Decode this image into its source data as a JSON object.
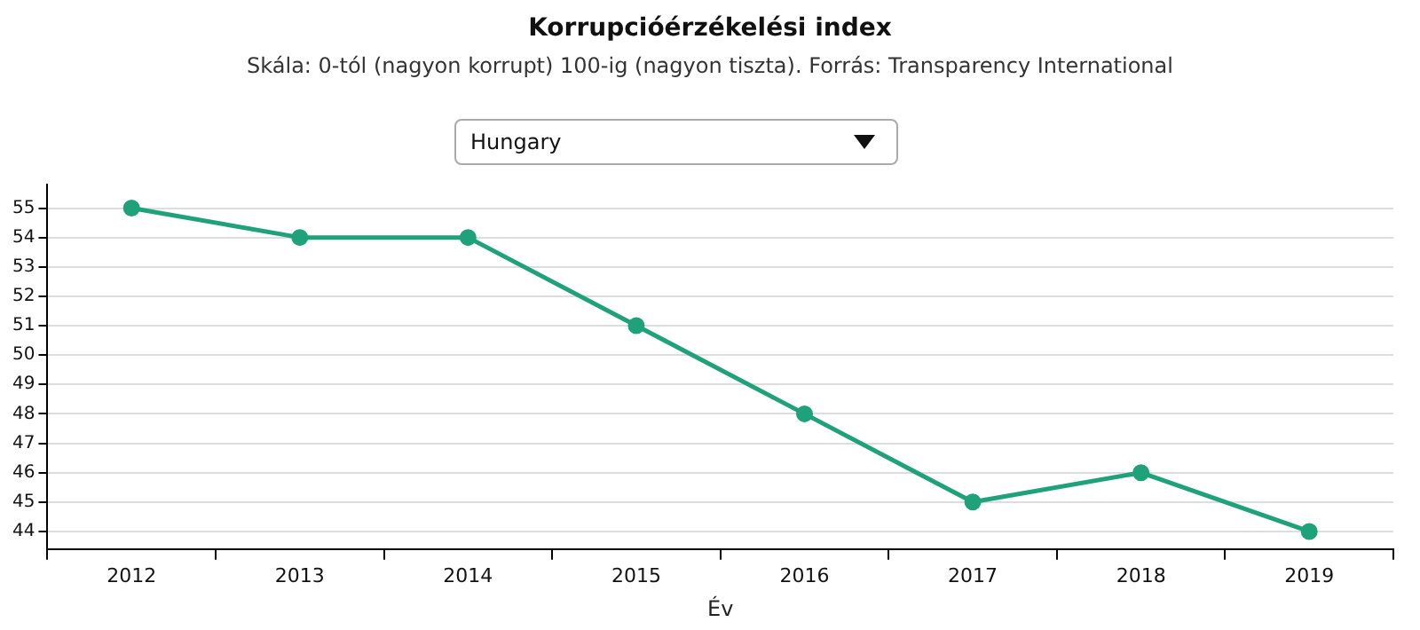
{
  "chart_data": {
    "type": "line",
    "title": "Korrupcióérzékelési index",
    "subtitle": "Skála: 0-tól (nagyon korrupt) 100-ig (nagyon tiszta). Forrás: Transparency International",
    "xlabel": "Év",
    "annotations": [
      "Hungary"
    ],
    "categories": [
      "2012",
      "2013",
      "2014",
      "2015",
      "2016",
      "2017",
      "2018",
      "2019"
    ],
    "series": [
      {
        "color": "#1fa27a",
        "values": [
          55,
          54,
          54,
          51,
          48,
          45,
          46,
          44
        ]
      }
    ],
    "ylim": [
      43.4,
      55.8
    ],
    "yticks": [
      44,
      45,
      46,
      47,
      48,
      49,
      50,
      51,
      52,
      53,
      54,
      55
    ],
    "grid": "y",
    "legend": false,
    "marker": "circle",
    "line_style": "solid"
  }
}
